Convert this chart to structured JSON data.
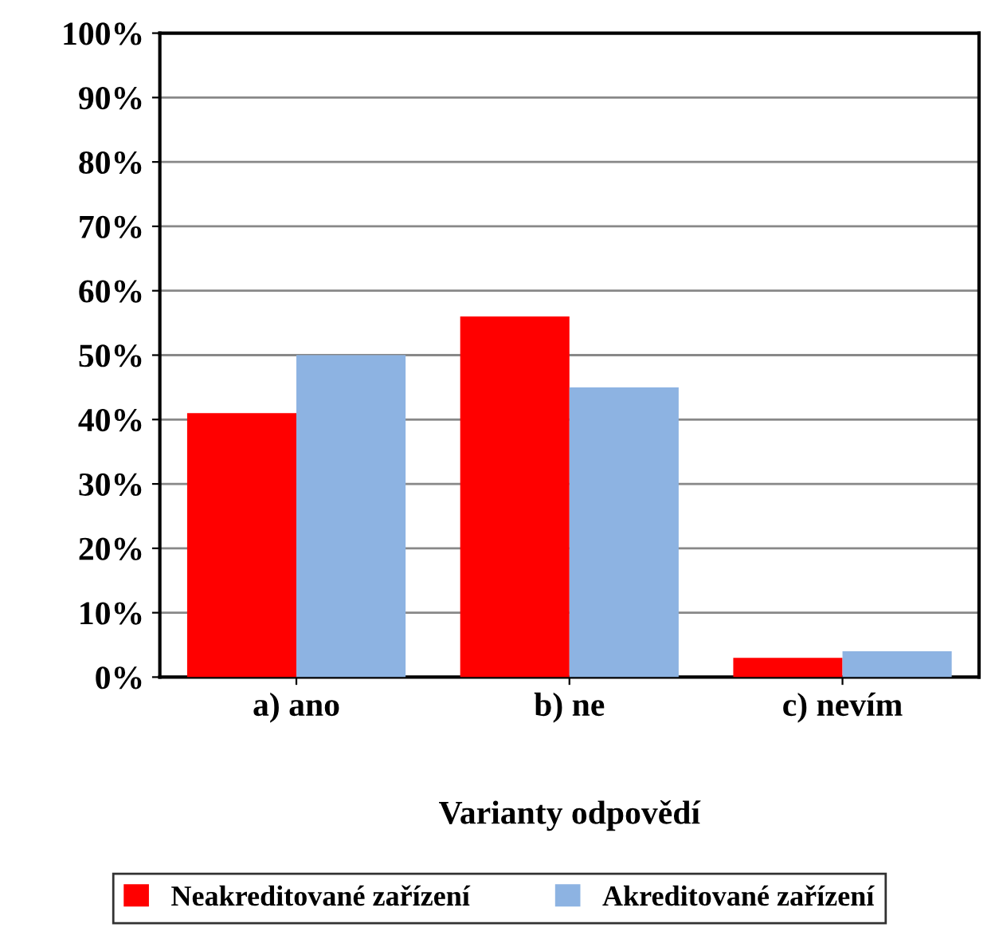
{
  "chart_data": {
    "type": "bar",
    "xlabel": "Varianty odpovědí",
    "categories": [
      "a) ano",
      "b) ne",
      "c) nevím"
    ],
    "series": [
      {
        "name": "Neakreditované zařízení",
        "color": "#ff0000",
        "values": [
          41,
          56,
          3
        ]
      },
      {
        "name": "Akreditované zařízení",
        "color": "#8db3e2",
        "values": [
          50,
          45,
          4
        ]
      }
    ],
    "ylim": [
      0,
      100
    ],
    "yticks": [
      {
        "value": 0,
        "label": "0%"
      },
      {
        "value": 10,
        "label": "10%"
      },
      {
        "value": 20,
        "label": "20%"
      },
      {
        "value": 30,
        "label": "30%"
      },
      {
        "value": 40,
        "label": "40%"
      },
      {
        "value": 50,
        "label": "50%"
      },
      {
        "value": 60,
        "label": "60%"
      },
      {
        "value": 70,
        "label": "70%"
      },
      {
        "value": 80,
        "label": "80%"
      },
      {
        "value": 90,
        "label": "90%"
      },
      {
        "value": 100,
        "label": "100%"
      }
    ],
    "grid": "y",
    "legend": "bottom"
  }
}
